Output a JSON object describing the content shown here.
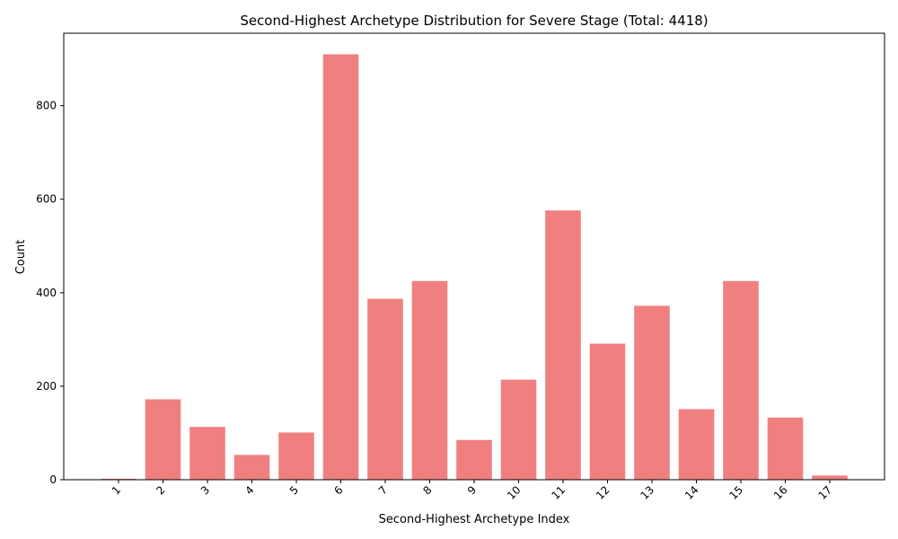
{
  "chart_data": {
    "type": "bar",
    "title": "Second-Highest Archetype Distribution for Severe Stage (Total: 4418)",
    "xlabel": "Second-Highest Archetype Index",
    "ylabel": "Count",
    "categories": [
      "1",
      "2",
      "3",
      "4",
      "5",
      "6",
      "7",
      "8",
      "9",
      "10",
      "11",
      "12",
      "13",
      "14",
      "15",
      "16",
      "17"
    ],
    "values": [
      2,
      172,
      113,
      53,
      101,
      910,
      387,
      425,
      85,
      214,
      576,
      291,
      372,
      151,
      425,
      133,
      9
    ],
    "ylim": [
      0,
      955
    ],
    "yticks": [
      0,
      200,
      400,
      600,
      800
    ],
    "bar_color": "#f08080",
    "grid": false,
    "legend": "none"
  }
}
